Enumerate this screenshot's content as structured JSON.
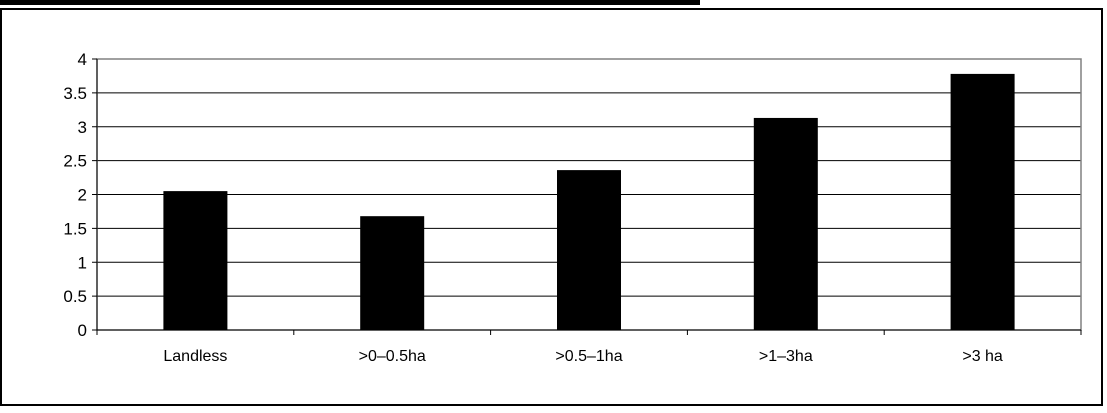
{
  "chart_data": {
    "type": "bar",
    "categories": [
      "Landless",
      ">0–0.5ha",
      ">0.5–1ha",
      ">1–3ha",
      ">3 ha"
    ],
    "values": [
      2.05,
      1.68,
      2.36,
      3.13,
      3.78
    ],
    "title": "",
    "xlabel": "",
    "ylabel": "",
    "ylim": [
      0,
      4
    ],
    "yticks": [
      "0",
      "0.5",
      "1",
      "1.5",
      "2",
      "2.5",
      "3",
      "3.5",
      "4"
    ],
    "grid": true,
    "legend": "none",
    "colors": {
      "bar": "#000000",
      "grid": "#000000",
      "plot_border": "#808080"
    }
  }
}
